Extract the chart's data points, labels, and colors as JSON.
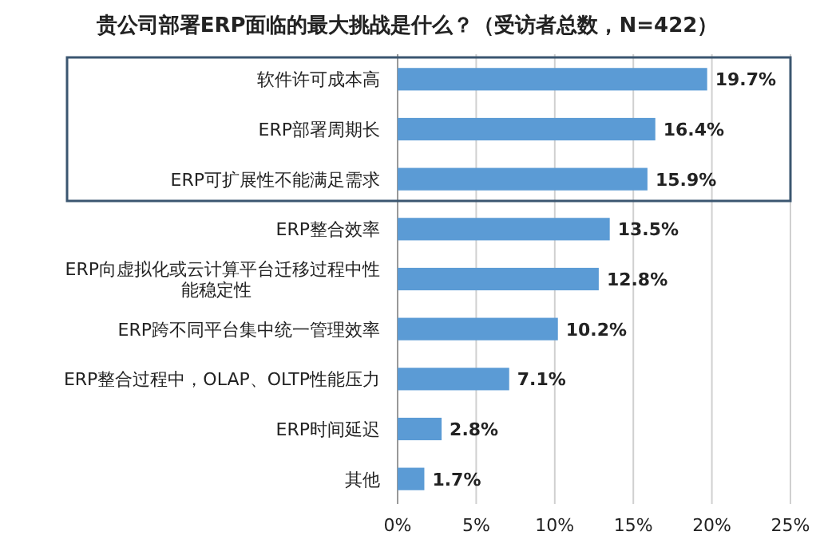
{
  "chart_data": {
    "type": "bar",
    "orientation": "horizontal",
    "title": "贵公司部署ERP面临的最大挑战是什么？（受访者总数，N=422）",
    "categories": [
      "软件许可成本高",
      "ERP部署周期长",
      "ERP可扩展性不能满足需求",
      "ERP整合效率",
      "ERP向虚拟化或云计算平台迁移过程中性能稳定性",
      "ERP跨不同平台集中统一管理效率",
      "ERP整合过程中，OLAP、OLTP性能压力",
      "ERP时间延迟",
      "其他"
    ],
    "values": [
      19.7,
      16.4,
      15.9,
      13.5,
      12.8,
      10.2,
      7.1,
      2.8,
      1.7
    ],
    "value_labels": [
      "19.7%",
      "16.4%",
      "15.9%",
      "13.5%",
      "12.8%",
      "10.2%",
      "7.1%",
      "2.8%",
      "1.7%"
    ],
    "color": "#5b9bd5",
    "xlim": [
      0,
      25
    ],
    "xticks": [
      {
        "value": 0,
        "label": "0%"
      },
      {
        "value": 5,
        "label": "5%"
      },
      {
        "value": 10,
        "label": "10%"
      },
      {
        "value": 15,
        "label": "15%"
      },
      {
        "value": 20,
        "label": "20%"
      },
      {
        "value": 25,
        "label": "25%"
      }
    ],
    "grid": "x"
  }
}
